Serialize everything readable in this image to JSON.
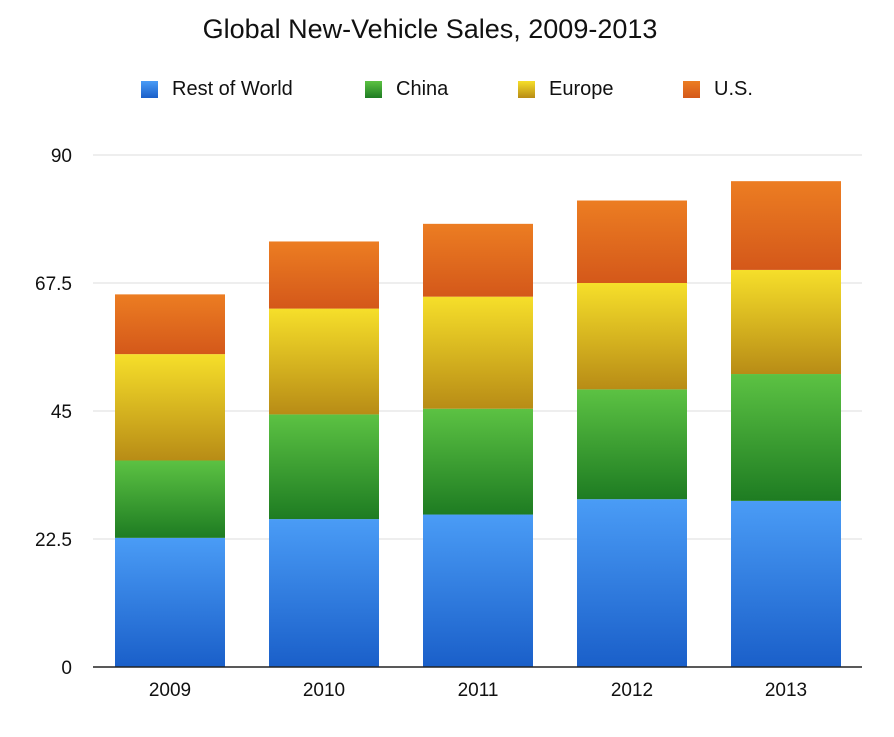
{
  "chart_data": {
    "type": "bar",
    "stacked": true,
    "title": "Global New-Vehicle Sales, 2009-2013",
    "xlabel": "",
    "ylabel": "",
    "categories": [
      "2009",
      "2010",
      "2011",
      "2012",
      "2013"
    ],
    "ylim": [
      0,
      90
    ],
    "yticks": [
      0,
      22.5,
      45,
      67.5,
      90
    ],
    "ytick_labels": [
      "0",
      "22.5",
      "45",
      "67.5",
      "90"
    ],
    "grid": true,
    "legend_position": "top",
    "series": [
      {
        "name": "Rest of World",
        "values": [
          22.7,
          26.0,
          26.8,
          29.5,
          29.2
        ],
        "color_top": "#4a9cf6",
        "color_bottom": "#1a5fc9"
      },
      {
        "name": "China",
        "values": [
          13.6,
          18.4,
          18.6,
          19.3,
          22.3
        ],
        "color_top": "#5cc243",
        "color_bottom": "#1e7c22"
      },
      {
        "name": "Europe",
        "values": [
          18.7,
          18.6,
          19.7,
          18.7,
          18.3
        ],
        "color_top": "#f6df2a",
        "color_bottom": "#b88c16"
      },
      {
        "name": "U.S.",
        "values": [
          10.5,
          11.8,
          12.8,
          14.5,
          15.6
        ],
        "color_top": "#ec7d22",
        "color_bottom": "#d4581a"
      }
    ]
  }
}
